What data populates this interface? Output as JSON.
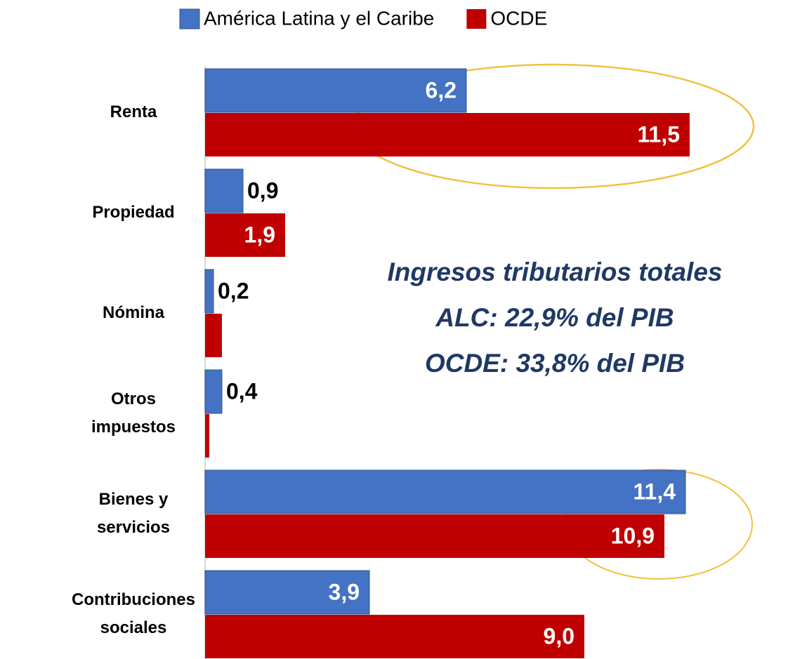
{
  "chart_data": {
    "type": "bar",
    "orientation": "horizontal",
    "categories": [
      "Renta",
      "Propiedad",
      "Nómina",
      "Otros impuestos",
      "Bienes y servicios",
      "Contribuciones sociales"
    ],
    "series": [
      {
        "name": "América Latina y el Caribe",
        "color": "#4472c4",
        "values": [
          6.2,
          0.9,
          0.2,
          0.4,
          11.4,
          3.9
        ],
        "value_labels": [
          "6,2",
          "0,9",
          "0,2",
          "0,4",
          "11,4",
          "3,9"
        ]
      },
      {
        "name": "OCDE",
        "color": "#c00000",
        "values": [
          11.5,
          1.9,
          0.4,
          0.1,
          10.9,
          9.0
        ],
        "value_labels": [
          "11,5",
          "1,9",
          null,
          null,
          "10,9",
          "9,0"
        ]
      }
    ],
    "xlim": [
      0,
      13.5
    ],
    "legend": "top",
    "annotations": [
      "Ingresos tributarios totales",
      "ALC: 22,9% del PIB",
      "OCDE: 33,8% del PIB"
    ],
    "annotation_color": "#203864"
  }
}
